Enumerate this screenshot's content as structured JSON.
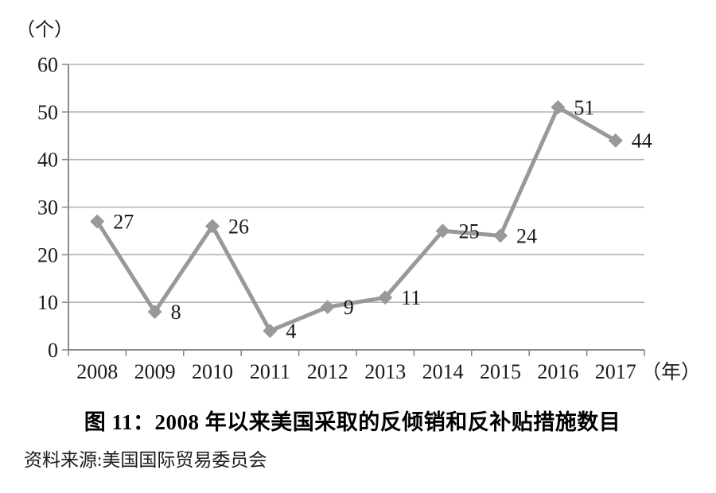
{
  "figure": {
    "title": "图 11：2008 年以来美国采取的反倾销和反补贴措施数目",
    "source": "资料来源:美国国际贸易委员会",
    "y_axis_unit": "（个）",
    "x_axis_unit": "（年）"
  },
  "chart_data": {
    "type": "line",
    "title": "图 11：2008 年以来美国采取的反倾销和反补贴措施数目",
    "categories": [
      "2008",
      "2009",
      "2010",
      "2011",
      "2012",
      "2013",
      "2014",
      "2015",
      "2016",
      "2017"
    ],
    "values": [
      27,
      8,
      26,
      4,
      9,
      11,
      25,
      24,
      51,
      44
    ],
    "xlabel": "（年）",
    "ylabel": "（个）",
    "ylim": [
      0,
      60
    ],
    "yticks": [
      0,
      10,
      20,
      30,
      40,
      50,
      60
    ],
    "grid": true,
    "legend": "none",
    "marker": "diamond",
    "data_labels": true,
    "source": "资料来源:美国国际贸易委员会"
  },
  "colors": {
    "line": "#999999",
    "marker": "#999999",
    "grid": "#b3b3b3",
    "axis": "#8c8c8c",
    "text": "#1a1a1a",
    "background": "#ffffff"
  }
}
